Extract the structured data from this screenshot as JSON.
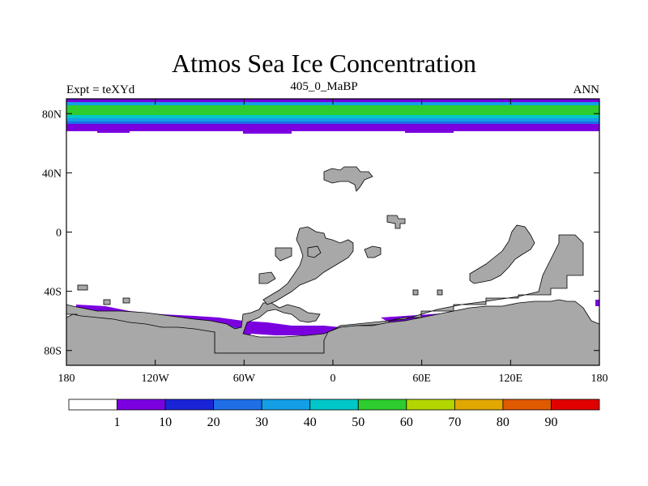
{
  "title": "Atmos Sea Ice Concentration",
  "left_label": "Expt = teXYd",
  "center_label": "405_0_MaBP",
  "right_label": "ANN",
  "chart_data": {
    "type": "heatmap",
    "x_ticks": [
      "180",
      "120W",
      "60W",
      "0",
      "60E",
      "120E",
      "180"
    ],
    "x_tick_values": [
      -180,
      -120,
      -60,
      0,
      60,
      120,
      180
    ],
    "y_ticks": [
      "80N",
      "40N",
      "0",
      "40S",
      "80S"
    ],
    "y_tick_values": [
      80,
      40,
      0,
      -40,
      -80
    ],
    "xlim": [
      -180,
      180
    ],
    "ylim": [
      -90,
      90
    ],
    "colorbar": {
      "labels": [
        "1",
        "10",
        "20",
        "30",
        "40",
        "50",
        "60",
        "70",
        "80",
        "90"
      ],
      "colors": [
        "#ffffff",
        "#7a00e0",
        "#1a24d6",
        "#1e6ee6",
        "#139fe6",
        "#00c8c8",
        "#2ecc2e",
        "#b3d600",
        "#e0a800",
        "#e05a00",
        "#e00000"
      ]
    },
    "land_color": "#a8a8a8"
  }
}
